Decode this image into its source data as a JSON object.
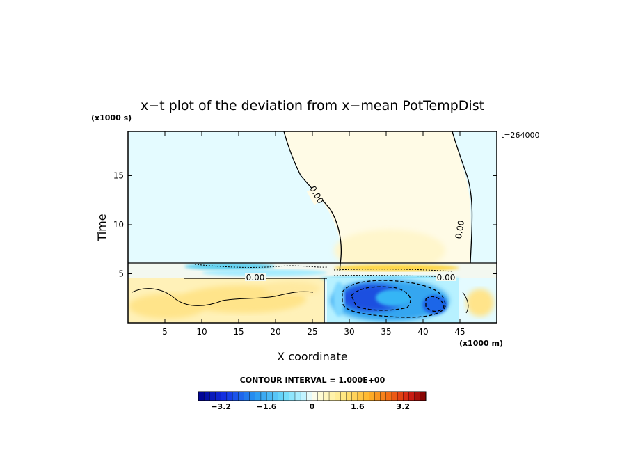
{
  "chart_data": {
    "type": "heatmap",
    "title": "x−t plot of the deviation from x−mean PotTempDist",
    "xlabel": "X coordinate",
    "ylabel": "Time",
    "x_units": "(x1000 m)",
    "y_units": "(x1000 s)",
    "timestamp": "t=264000",
    "xlim": [
      0,
      50
    ],
    "ylim": [
      0,
      19.5
    ],
    "x_ticks": [
      5,
      10,
      15,
      20,
      25,
      30,
      35,
      40,
      45
    ],
    "y_ticks": [
      5,
      10,
      15
    ],
    "contour_interval_text": "CONTOUR INTERVAL = 1.000E+00",
    "contour_labels": [
      "0.00",
      "0.00",
      "0.00",
      "0.00"
    ],
    "colorbar": {
      "min": -4.0,
      "max": 4.0,
      "step": 0.2,
      "ticks": [
        "−3.2",
        "−1.6",
        "0",
        "1.6",
        "3.2"
      ],
      "tick_values": [
        -3.2,
        -1.6,
        0,
        1.6,
        3.2
      ]
    }
  }
}
